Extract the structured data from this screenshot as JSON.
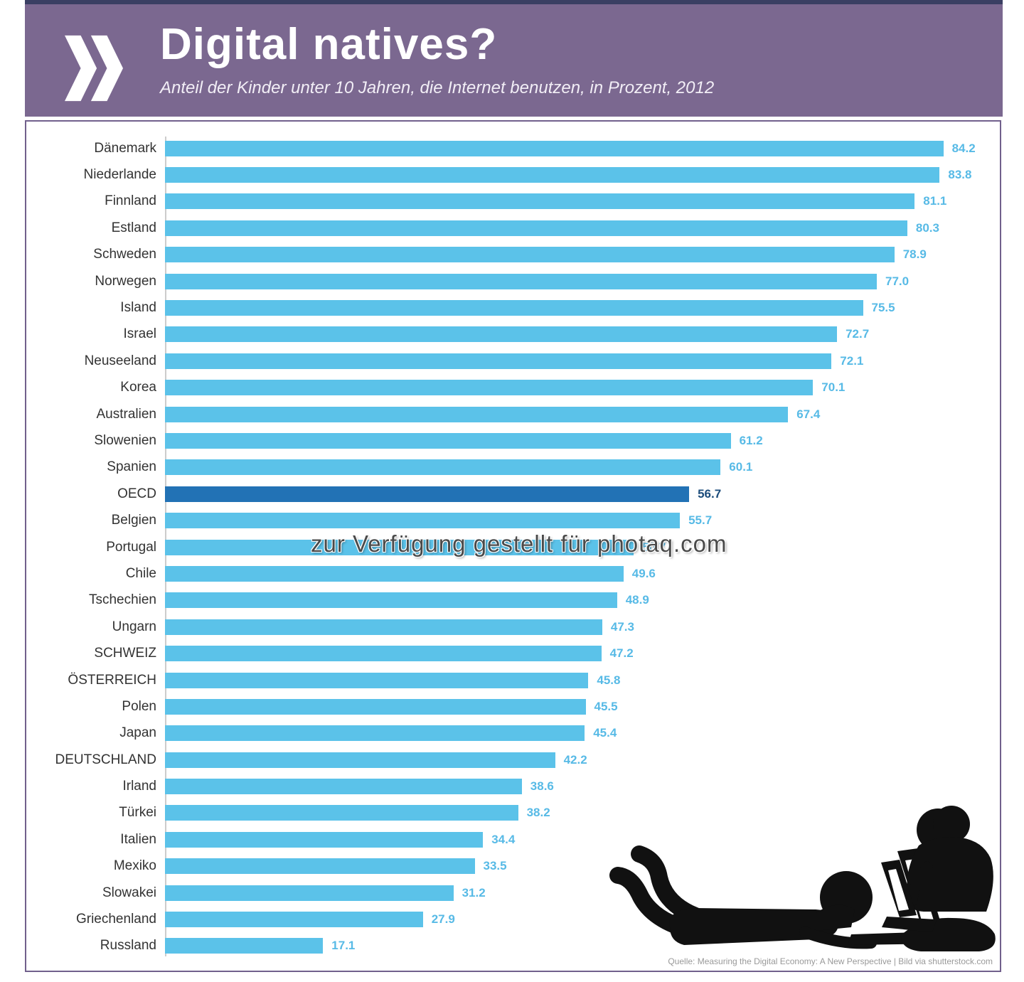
{
  "header": {
    "title": "Digital natives?",
    "subtitle": "Anteil der Kinder unter 10 Jahren, die Internet benutzen, in Prozent, 2012",
    "logo": "oecd-double-chevron"
  },
  "watermark": "zur Verfügung gestellt für photaq.com",
  "source": "Quelle: Measuring the Digital Economy: A New Perspective | Bild via shutterstock.com",
  "colors": {
    "banner_purple": "#7b6890",
    "top_strip_navy": "#3a3f63",
    "bar_blue": "#5bc2e9",
    "oecd_bar_blue": "#2272b5",
    "value_label_blue": "#57bae6",
    "oecd_value_navy": "#1d4d7c",
    "country_label": "#333333",
    "chart_border_purple": "#71608c",
    "axis_gray": "#cccccc",
    "watermark_gray": "#4a4a4a",
    "source_gray": "#999999",
    "silhouette_black": "#111111"
  },
  "chart_data": {
    "type": "bar",
    "orientation": "horizontal",
    "title": "Digital natives?",
    "subtitle": "Anteil der Kinder unter 10 Jahren, die Internet benutzen, in Prozent, 2012",
    "unit": "%",
    "year": "2012",
    "xlim": [
      0,
      90
    ],
    "grid": false,
    "legend": false,
    "categories": [
      "Dänemark",
      "Niederlande",
      "Finnland",
      "Estland",
      "Schweden",
      "Norwegen",
      "Island",
      "Israel",
      "Neuseeland",
      "Korea",
      "Australien",
      "Slowenien",
      "Spanien",
      "OECD",
      "Belgien",
      "Portugal",
      "Chile",
      "Tschechien",
      "Ungarn",
      "SCHWEIZ",
      "ÖSTERREICH",
      "Polen",
      "Japan",
      "DEUTSCHLAND",
      "Irland",
      "Türkei",
      "Italien",
      "Mexiko",
      "Slowakei",
      "Griechenland",
      "Russland"
    ],
    "values": [
      84.2,
      83.8,
      81.1,
      80.3,
      78.9,
      77.0,
      75.5,
      72.7,
      72.1,
      70.1,
      67.4,
      61.2,
      60.1,
      56.7,
      55.7,
      50.7,
      49.6,
      48.9,
      47.3,
      47.2,
      45.8,
      45.5,
      45.4,
      42.2,
      38.6,
      38.2,
      34.4,
      33.5,
      31.2,
      27.9,
      17.1
    ],
    "value_labels": [
      "84.2",
      "83.8",
      "81.1",
      "80.3",
      "78.9",
      "77.0",
      "75.5",
      "72.7",
      "72.1",
      "70.1",
      "67.4",
      "61.2",
      "60.1",
      "56.7",
      "55.7",
      "50.7",
      "49.6",
      "48.9",
      "47.3",
      "47.2",
      "45.8",
      "45.5",
      "45.4",
      "42.2",
      "38.6",
      "38.2",
      "34.4",
      "33.5",
      "31.2",
      "27.9",
      "17.1"
    ],
    "highlight": {
      "category": "OECD",
      "value": 56.7,
      "index": 13
    }
  }
}
